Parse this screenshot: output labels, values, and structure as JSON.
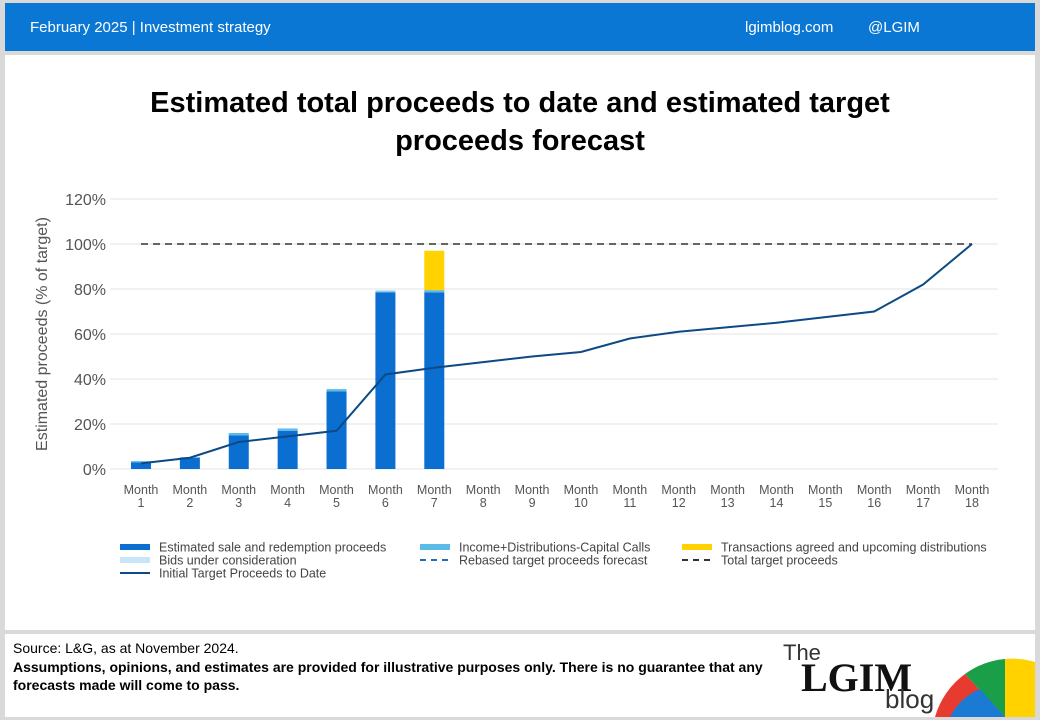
{
  "header": {
    "left": "February 2025 |  Investment strategy",
    "site": "lgimblog.com",
    "handle": "@LGIM"
  },
  "chart_data": {
    "type": "bar",
    "title": "Estimated total proceeds to date and estimated target proceeds forecast",
    "ylabel": "Estimated proceeds (% of target)",
    "categories": [
      "Month 1",
      "Month 2",
      "Month 3",
      "Month 4",
      "Month 5",
      "Month 6",
      "Month 7",
      "Month 8",
      "Month 9",
      "Month 10",
      "Month 11",
      "Month 12",
      "Month 13",
      "Month 14",
      "Month 15",
      "Month 16",
      "Month 17",
      "Month 18"
    ],
    "ylim": [
      0,
      120
    ],
    "yticks": [
      {
        "value": 0,
        "label": "0%"
      },
      {
        "value": 20,
        "label": "20%"
      },
      {
        "value": 40,
        "label": "40%"
      },
      {
        "value": 60,
        "label": "60%"
      },
      {
        "value": 80,
        "label": "80%"
      },
      {
        "value": 100,
        "label": "100%"
      },
      {
        "value": 120,
        "label": "120%"
      }
    ],
    "grid": true,
    "series": [
      {
        "name": "Estimated sale and redemption proceeds",
        "type": "bar",
        "color": "#0a6fd1",
        "values": [
          3,
          5,
          15,
          17,
          34.5,
          78.5,
          78.5,
          null,
          null,
          null,
          null,
          null,
          null,
          null,
          null,
          null,
          null,
          null
        ]
      },
      {
        "name": "Income+Distributions-Capital Calls",
        "type": "bar",
        "color": "#5bbbe8",
        "values": [
          0.5,
          0.3,
          1,
          1,
          1,
          0.5,
          1,
          null,
          null,
          null,
          null,
          null,
          null,
          null,
          null,
          null,
          null,
          null
        ]
      },
      {
        "name": "Transactions agreed and upcoming distributions",
        "type": "bar",
        "color": "#ffd200",
        "values": [
          null,
          null,
          null,
          null,
          null,
          null,
          17.5,
          null,
          null,
          null,
          null,
          null,
          null,
          null,
          null,
          null,
          null,
          null
        ]
      },
      {
        "name": "Bids under consideration",
        "type": "bar",
        "color": "#c8e4f6",
        "values": [
          null,
          null,
          null,
          null,
          null,
          0.5,
          null,
          null,
          null,
          null,
          null,
          null,
          null,
          null,
          null,
          null,
          null,
          null
        ]
      },
      {
        "name": "Rebased target proceeds forecast",
        "type": "line",
        "dashed": true,
        "color": "#1f6fb5",
        "values": [
          null,
          null,
          null,
          null,
          null,
          null,
          null,
          null,
          null,
          null,
          null,
          null,
          null,
          null,
          null,
          null,
          null,
          null
        ]
      },
      {
        "name": "Total target proceeds",
        "type": "line",
        "dashed": true,
        "color": "#333333",
        "values": [
          100,
          100,
          100,
          100,
          100,
          100,
          100,
          100,
          100,
          100,
          100,
          100,
          100,
          100,
          100,
          100,
          100,
          100
        ]
      },
      {
        "name": "Initial Target Proceeds to Date",
        "type": "line",
        "dashed": false,
        "color": "#0d4a85",
        "values": [
          2.5,
          5,
          12,
          14.5,
          17,
          42,
          45,
          47.5,
          50,
          52,
          58,
          61,
          63,
          65,
          67.5,
          70,
          82,
          100
        ]
      }
    ]
  },
  "footer": {
    "source": "Source: L&G, as at November 2024.",
    "disclaimer": "Assumptions,  opinions, and estimates are provided for illustrative purposes only. There is no guarantee that any forecasts made will come to pass.",
    "logo_the": "The",
    "logo_main": "LGIM",
    "logo_blog": "blog"
  }
}
